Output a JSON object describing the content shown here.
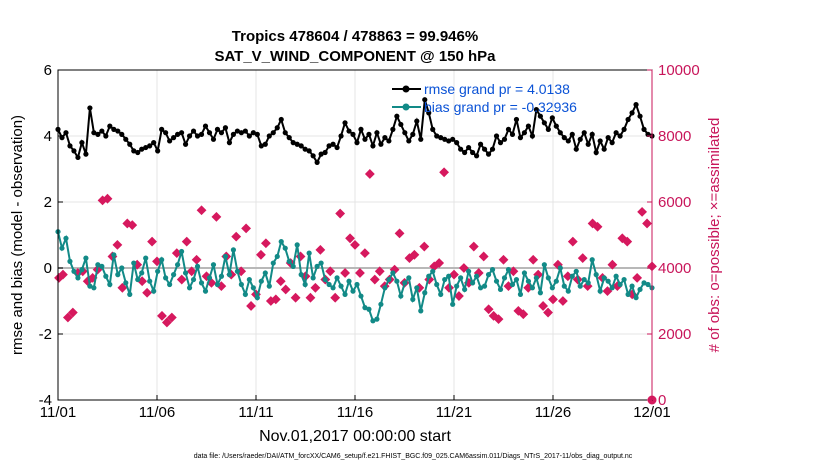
{
  "chart_data": {
    "type": "line",
    "title": "Tropics 478604 / 478863 = 99.946%",
    "subtitle": "SAT_V_WIND_COMPONENT @ 150 hPa",
    "xlabel": "Nov.01,2017 00:00:00 start",
    "ylabel": "rmse and bias (model - observation)",
    "y2label": "# of obs: o=possible; ×=assimilated",
    "footer": "data file: /Users/raeder/DAI/ATM_forcXX/CAM6_setup/f.e21.FHIST_BGC.f09_025.CAM6assim.011/Diags_NTrS_2017-11/obs_diag_output.nc",
    "x_ticks": [
      "11/01",
      "11/06",
      "11/11",
      "11/16",
      "11/21",
      "11/26",
      "12/01"
    ],
    "x_tick_days": [
      0,
      5,
      10,
      15,
      20,
      25,
      30
    ],
    "xlim": [
      0,
      30
    ],
    "ylim": [
      -4,
      6
    ],
    "y_ticks": [
      "-4",
      "-2",
      "0",
      "2",
      "4",
      "6"
    ],
    "y2lim": [
      0,
      10000
    ],
    "y2_ticks": [
      "0",
      "2000",
      "4000",
      "6000",
      "8000",
      "10000"
    ],
    "grid": true,
    "legend_position": "top-right",
    "colors": {
      "rmse": "#000000",
      "bias": "#128a87",
      "obs": "#d6195e",
      "axis2": "#c8155a",
      "legend_text": "#0a52d6",
      "zero_line": "#b8b8b8"
    },
    "series": [
      {
        "name": "rmse grand pr = 4.0138",
        "axis": "left",
        "values": [
          4.2,
          3.95,
          4.1,
          3.7,
          3.55,
          3.35,
          3.8,
          3.45,
          4.85,
          4.1,
          4.05,
          4.15,
          4.0,
          4.3,
          4.2,
          4.15,
          4.05,
          3.9,
          3.75,
          3.55,
          3.5,
          3.6,
          3.65,
          3.7,
          3.8,
          3.55,
          4.2,
          4.1,
          3.85,
          3.95,
          4.05,
          4.1,
          3.75,
          4.0,
          4.15,
          4.0,
          4.05,
          4.3,
          4.1,
          3.9,
          4.2,
          4.1,
          4.25,
          3.8,
          4.05,
          4.15,
          4.1,
          4.15,
          4.0,
          4.1,
          4.05,
          3.7,
          3.75,
          4.0,
          4.1,
          4.25,
          4.5,
          4.1,
          3.95,
          3.8,
          3.75,
          3.7,
          3.6,
          3.55,
          3.4,
          3.2,
          3.45,
          3.5,
          3.7,
          3.75,
          3.65,
          4.0,
          4.4,
          4.15,
          4.05,
          3.8,
          4.2,
          3.9,
          4.05,
          3.7,
          4.1,
          3.75,
          3.95,
          3.85,
          4.2,
          4.6,
          4.35,
          4.1,
          3.85,
          4.05,
          4.45,
          3.9,
          5.1,
          4.7,
          4.2,
          4.0,
          3.95,
          3.9,
          3.85,
          3.9,
          3.8,
          3.6,
          3.5,
          3.65,
          3.5,
          3.4,
          3.75,
          3.6,
          3.45,
          3.6,
          4.0,
          3.8,
          3.9,
          4.2,
          4.05,
          4.5,
          3.95,
          4.1,
          4.3,
          4.0,
          4.8,
          4.6,
          4.4,
          4.2,
          4.55,
          4.3,
          4.1,
          3.95,
          3.85,
          4.05,
          3.6,
          3.9,
          4.1,
          3.75,
          4.05,
          3.5,
          3.85,
          3.6,
          3.95,
          3.8,
          4.1,
          4.0,
          4.2,
          4.5,
          4.7,
          4.95,
          4.6,
          4.2,
          4.05,
          4.0
        ]
      },
      {
        "name": "bias grand pr = -0.32936",
        "axis": "left",
        "values": [
          1.1,
          0.6,
          0.9,
          0.2,
          -0.1,
          -0.3,
          -0.05,
          0.3,
          -0.55,
          -0.6,
          0.1,
          0.05,
          -0.25,
          -0.5,
          0.4,
          -0.2,
          0.0,
          -0.45,
          -0.8,
          0.15,
          -0.35,
          -0.15,
          0.3,
          -0.4,
          -0.7,
          -0.1,
          0.25,
          -0.3,
          -0.5,
          -0.2,
          0.1,
          0.5,
          -0.15,
          -0.6,
          -0.35,
          0.05,
          -0.45,
          -0.7,
          -0.3,
          0.1,
          -0.5,
          -0.25,
          0.35,
          -0.2,
          0.55,
          -0.1,
          -0.5,
          -0.8,
          -0.35,
          -0.6,
          -0.9,
          -0.4,
          -0.15,
          -0.55,
          0.15,
          0.35,
          0.8,
          0.6,
          0.2,
          0.05,
          0.7,
          -0.2,
          -0.5,
          0.45,
          -0.3,
          0.05,
          0.15,
          -0.35,
          -0.5,
          -0.6,
          -0.3,
          -0.55,
          -0.8,
          -0.4,
          -0.7,
          -0.5,
          -0.85,
          -1.2,
          -1.25,
          -1.6,
          -1.55,
          -1.1,
          -0.6,
          -0.35,
          -0.15,
          -0.4,
          -0.85,
          -0.45,
          -0.3,
          -0.95,
          -0.6,
          -1.3,
          -0.75,
          -0.25,
          -0.1,
          -0.5,
          -0.8,
          -0.35,
          -0.25,
          -1.1,
          -0.55,
          -0.3,
          -0.65,
          -0.1,
          -0.45,
          -0.25,
          -0.6,
          -0.55,
          -0.2,
          -0.05,
          -0.4,
          -0.65,
          -0.3,
          -0.05,
          -0.5,
          -0.35,
          -0.8,
          -0.15,
          -0.4,
          -0.6,
          -0.3,
          -0.75,
          0.1,
          -0.3,
          -0.6,
          -0.4,
          0.0,
          -0.55,
          -0.7,
          -0.25,
          -0.1,
          -0.55,
          -0.35,
          -0.45,
          0.25,
          -0.2,
          -0.7,
          -0.3,
          -0.4,
          -0.6,
          -0.25,
          -0.5,
          -0.35,
          -0.8,
          -0.55,
          -0.9,
          -0.65,
          -0.45,
          -0.5,
          -0.6
        ]
      }
    ],
    "obs_assimilated": {
      "axis": "right",
      "points": [
        [
          0.05,
          3700
        ],
        [
          0.25,
          3800
        ],
        [
          0.5,
          2500
        ],
        [
          0.75,
          2650
        ],
        [
          1.0,
          3850
        ],
        [
          1.25,
          3900
        ],
        [
          1.5,
          3600
        ],
        [
          1.75,
          3700
        ],
        [
          2.0,
          3950
        ],
        [
          2.25,
          6050
        ],
        [
          2.5,
          6100
        ],
        [
          2.75,
          4350
        ],
        [
          3.0,
          4700
        ],
        [
          3.25,
          3400
        ],
        [
          3.5,
          5350
        ],
        [
          3.75,
          5300
        ],
        [
          4.0,
          4100
        ],
        [
          4.25,
          3600
        ],
        [
          4.5,
          3250
        ],
        [
          4.75,
          4800
        ],
        [
          5.0,
          4200
        ],
        [
          5.25,
          2550
        ],
        [
          5.5,
          2350
        ],
        [
          5.75,
          2500
        ],
        [
          6.0,
          4450
        ],
        [
          6.25,
          3650
        ],
        [
          6.5,
          4800
        ],
        [
          6.75,
          3900
        ],
        [
          7.0,
          4250
        ],
        [
          7.25,
          5750
        ],
        [
          7.5,
          3750
        ],
        [
          7.75,
          3550
        ],
        [
          8.0,
          5550
        ],
        [
          8.25,
          3450
        ],
        [
          8.5,
          4350
        ],
        [
          8.75,
          3800
        ],
        [
          9.0,
          4950
        ],
        [
          9.25,
          3900
        ],
        [
          9.5,
          5200
        ],
        [
          9.75,
          2850
        ],
        [
          10.0,
          3200
        ],
        [
          10.25,
          4400
        ],
        [
          10.5,
          4750
        ],
        [
          10.75,
          3000
        ],
        [
          11.0,
          3050
        ],
        [
          11.25,
          3600
        ],
        [
          11.5,
          3350
        ],
        [
          11.75,
          4150
        ],
        [
          12.0,
          3100
        ],
        [
          12.25,
          4350
        ],
        [
          12.5,
          3750
        ],
        [
          12.75,
          3100
        ],
        [
          13.0,
          3400
        ],
        [
          13.25,
          4550
        ],
        [
          13.5,
          3650
        ],
        [
          13.75,
          3900
        ],
        [
          14.0,
          3100
        ],
        [
          14.25,
          5650
        ],
        [
          14.5,
          3850
        ],
        [
          14.75,
          4900
        ],
        [
          15.0,
          4700
        ],
        [
          15.25,
          3850
        ],
        [
          15.5,
          4450
        ],
        [
          15.75,
          6850
        ],
        [
          16.0,
          3650
        ],
        [
          16.25,
          3900
        ],
        [
          16.5,
          3450
        ],
        [
          16.75,
          3650
        ],
        [
          17.0,
          3950
        ],
        [
          17.25,
          5050
        ],
        [
          17.5,
          3550
        ],
        [
          17.75,
          4300
        ],
        [
          18.0,
          4400
        ],
        [
          18.25,
          3400
        ],
        [
          18.5,
          4650
        ],
        [
          18.75,
          3650
        ],
        [
          19.0,
          4050
        ],
        [
          19.25,
          4150
        ],
        [
          19.5,
          6900
        ],
        [
          19.75,
          3400
        ],
        [
          20.0,
          3800
        ],
        [
          20.25,
          3150
        ],
        [
          20.5,
          4000
        ],
        [
          20.75,
          3550
        ],
        [
          21.0,
          4650
        ],
        [
          21.25,
          3850
        ],
        [
          21.5,
          4350
        ],
        [
          21.75,
          2750
        ],
        [
          22.0,
          2550
        ],
        [
          22.25,
          2450
        ],
        [
          22.5,
          4250
        ],
        [
          22.75,
          3450
        ],
        [
          23.0,
          3900
        ],
        [
          23.25,
          2700
        ],
        [
          23.5,
          2600
        ],
        [
          23.75,
          3400
        ],
        [
          24.0,
          4250
        ],
        [
          24.25,
          3800
        ],
        [
          24.5,
          2850
        ],
        [
          24.75,
          2650
        ],
        [
          25.0,
          3050
        ],
        [
          25.25,
          4100
        ],
        [
          25.5,
          3000
        ],
        [
          25.75,
          3750
        ],
        [
          26.0,
          4800
        ],
        [
          26.25,
          3650
        ],
        [
          26.5,
          4300
        ],
        [
          26.75,
          3450
        ],
        [
          27.0,
          5350
        ],
        [
          27.25,
          5250
        ],
        [
          27.5,
          3700
        ],
        [
          27.75,
          3300
        ],
        [
          28.0,
          4100
        ],
        [
          28.25,
          3450
        ],
        [
          28.5,
          4900
        ],
        [
          28.75,
          4800
        ],
        [
          29.0,
          3200
        ],
        [
          29.25,
          3700
        ],
        [
          29.5,
          5700
        ],
        [
          29.75,
          5350
        ],
        [
          30.0,
          4050
        ]
      ]
    },
    "obs_possible": {
      "axis": "right",
      "points": [
        [
          30.0,
          0
        ]
      ]
    }
  }
}
